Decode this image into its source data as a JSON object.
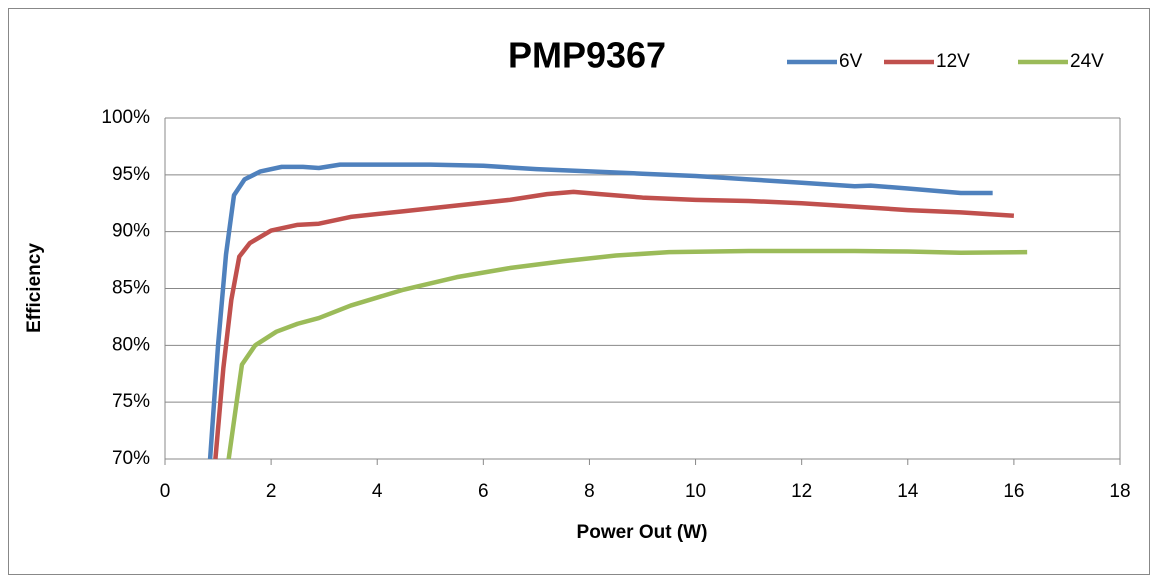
{
  "chart_data": {
    "type": "line",
    "title": "PMP9367",
    "x_label": "Power Out (W)",
    "y_label": "Efficiency",
    "xlim": [
      0,
      18
    ],
    "xticks": [
      0,
      2,
      4,
      6,
      8,
      10,
      12,
      14,
      16,
      18
    ],
    "ylim": [
      70,
      100
    ],
    "yticks": [
      {
        "value": 70,
        "label": "70%"
      },
      {
        "value": 75,
        "label": "75%"
      },
      {
        "value": 80,
        "label": "80%"
      },
      {
        "value": 85,
        "label": "85%"
      },
      {
        "value": 90,
        "label": "90%"
      },
      {
        "value": 95,
        "label": "95%"
      },
      {
        "value": 100,
        "label": "100%"
      }
    ],
    "grid": true,
    "legend": "top-right",
    "series": [
      {
        "name": "6V",
        "color": "#4f81bd",
        "x": [
          0.85,
          1.0,
          1.15,
          1.3,
          1.5,
          1.8,
          2.2,
          2.6,
          2.9,
          3.3,
          4,
          5,
          6,
          7,
          8,
          9,
          10,
          11,
          12,
          13,
          13.3,
          14,
          15,
          15.6
        ],
        "values": [
          70,
          80,
          88,
          93.2,
          94.6,
          95.3,
          95.7,
          95.7,
          95.6,
          95.9,
          95.9,
          95.9,
          95.8,
          95.5,
          95.3,
          95.1,
          94.9,
          94.6,
          94.3,
          94.0,
          94.05,
          93.8,
          93.4,
          93.4
        ]
      },
      {
        "name": "12V",
        "color": "#c0504d",
        "x": [
          0.95,
          1.1,
          1.25,
          1.4,
          1.6,
          2,
          2.5,
          2.9,
          3.5,
          4.5,
          5.5,
          6.5,
          7.2,
          7.7,
          8.2,
          9,
          10,
          11,
          12,
          13,
          14,
          15,
          16
        ],
        "values": [
          70,
          78,
          84,
          87.8,
          89,
          90.1,
          90.6,
          90.7,
          91.3,
          91.8,
          92.3,
          92.8,
          93.3,
          93.5,
          93.3,
          93,
          92.8,
          92.7,
          92.5,
          92.2,
          91.9,
          91.7,
          91.4
        ]
      },
      {
        "name": "24V",
        "color": "#9bbb59",
        "x": [
          1.2,
          1.35,
          1.45,
          1.7,
          2.1,
          2.5,
          2.9,
          3.5,
          4.5,
          5.5,
          6.5,
          7.5,
          8.5,
          9.5,
          11,
          12,
          13,
          14,
          15,
          16.25
        ],
        "values": [
          70,
          75,
          78.3,
          80,
          81.2,
          81.9,
          82.4,
          83.5,
          84.9,
          86,
          86.8,
          87.4,
          87.9,
          88.2,
          88.3,
          88.3,
          88.3,
          88.25,
          88.15,
          88.2
        ]
      }
    ]
  }
}
